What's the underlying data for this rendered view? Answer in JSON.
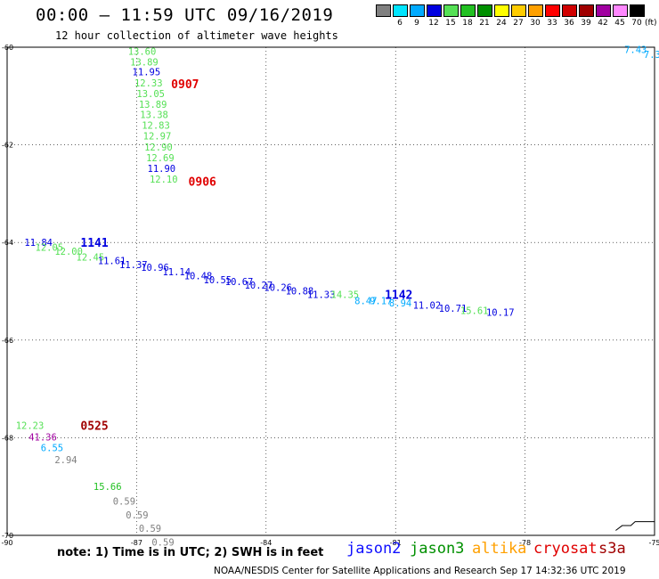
{
  "title": "00:00 – 11:59 UTC 09/16/2019",
  "subtitle": "12 hour collection of altimeter wave heights",
  "legend": {
    "labels": [
      "3",
      "6",
      "9",
      "12",
      "15",
      "18",
      "21",
      "24",
      "27",
      "30",
      "33",
      "36",
      "39",
      "42",
      "45",
      "70"
    ],
    "colors": [
      "#808080",
      "#00e5ff",
      "#00aaff",
      "#0000e0",
      "#55e055",
      "#22c022",
      "#009000",
      "#ffff00",
      "#ffcc00",
      "#ffa000",
      "#ff0000",
      "#d00000",
      "#a00000",
      "#a000a0",
      "#ff88ff",
      "#000000"
    ],
    "unit": "(ft)"
  },
  "note": "note: 1) Time is in UTC; 2) SWH is in feet",
  "satellites": [
    {
      "name": "jason2",
      "color": "#1010ff"
    },
    {
      "name": "jason3",
      "color": "#009000"
    },
    {
      "name": "altika",
      "color": "#ffa000"
    },
    {
      "name": "cryosat",
      "color": "#e00000"
    },
    {
      "name": "s3a",
      "color": "#a00000"
    }
  ],
  "credit": "NOAA/NESDIS Center for Satellite Applications and Research    Sep 17 14:32:36 UTC 2019",
  "chart_data": {
    "type": "scatter",
    "xlabel": "",
    "ylabel": "",
    "xlim": [
      -90,
      -75
    ],
    "ylim": [
      -70,
      -60
    ],
    "x_ticks": [
      -90,
      -87,
      -84,
      -81,
      -78,
      -75
    ],
    "y_ticks": [
      -60,
      -62,
      -64,
      -66,
      -68,
      -70
    ],
    "grid": true,
    "points": [
      {
        "lon": -87.2,
        "lat": -60.08,
        "v": "13.60",
        "c": "#55e055"
      },
      {
        "lon": -87.15,
        "lat": -60.3,
        "v": "13.89",
        "c": "#55e055"
      },
      {
        "lon": -87.1,
        "lat": -60.5,
        "v": "11.95",
        "c": "#0000e0"
      },
      {
        "lon": -87.05,
        "lat": -60.73,
        "v": "12.33",
        "c": "#55e055"
      },
      {
        "lon": -87.0,
        "lat": -60.95,
        "v": "13.05",
        "c": "#55e055"
      },
      {
        "lon": -86.95,
        "lat": -61.17,
        "v": "13.89",
        "c": "#55e055"
      },
      {
        "lon": -86.92,
        "lat": -61.38,
        "v": "13.38",
        "c": "#55e055"
      },
      {
        "lon": -86.88,
        "lat": -61.6,
        "v": "12.83",
        "c": "#55e055"
      },
      {
        "lon": -86.85,
        "lat": -61.82,
        "v": "12.97",
        "c": "#55e055"
      },
      {
        "lon": -86.82,
        "lat": -62.04,
        "v": "12.90",
        "c": "#55e055"
      },
      {
        "lon": -86.78,
        "lat": -62.26,
        "v": "12.69",
        "c": "#55e055"
      },
      {
        "lon": -86.75,
        "lat": -62.48,
        "v": "11.90",
        "c": "#0000e0"
      },
      {
        "lon": -86.7,
        "lat": -62.7,
        "v": "12.10",
        "c": "#55e055"
      },
      {
        "lon": -89.6,
        "lat": -64.0,
        "v": "11.84",
        "c": "#0000e0"
      },
      {
        "lon": -89.35,
        "lat": -64.1,
        "v": "12.05",
        "c": "#55e055"
      },
      {
        "lon": -88.9,
        "lat": -64.18,
        "v": "12.00",
        "c": "#55e055"
      },
      {
        "lon": -88.4,
        "lat": -64.3,
        "v": "12.45",
        "c": "#55e055"
      },
      {
        "lon": -87.9,
        "lat": -64.37,
        "v": "11.61",
        "c": "#0000e0"
      },
      {
        "lon": -87.4,
        "lat": -64.45,
        "v": "11.37",
        "c": "#0000e0"
      },
      {
        "lon": -86.9,
        "lat": -64.51,
        "v": "10.96",
        "c": "#0000e0"
      },
      {
        "lon": -86.4,
        "lat": -64.6,
        "v": "11.14",
        "c": "#0000e0"
      },
      {
        "lon": -85.9,
        "lat": -64.68,
        "v": "10.48",
        "c": "#0000e0"
      },
      {
        "lon": -85.45,
        "lat": -64.76,
        "v": "10.55",
        "c": "#0000e0"
      },
      {
        "lon": -84.95,
        "lat": -64.8,
        "v": "10.67",
        "c": "#0000e0"
      },
      {
        "lon": -84.5,
        "lat": -64.87,
        "v": "10.27",
        "c": "#0000e0"
      },
      {
        "lon": -84.05,
        "lat": -64.92,
        "v": "10.26",
        "c": "#0000e0"
      },
      {
        "lon": -83.55,
        "lat": -64.99,
        "v": "10.88",
        "c": "#0000e0"
      },
      {
        "lon": -83.05,
        "lat": -65.06,
        "v": "11.33",
        "c": "#0000e0"
      },
      {
        "lon": -82.5,
        "lat": -65.06,
        "v": "14.35",
        "c": "#55e055"
      },
      {
        "lon": -81.95,
        "lat": -65.19,
        "v": "8.47",
        "c": "#00aaff"
      },
      {
        "lon": -81.6,
        "lat": -65.19,
        "v": "9.17",
        "c": "#00aaff"
      },
      {
        "lon": -81.15,
        "lat": -65.24,
        "v": "8.94",
        "c": "#00aaff"
      },
      {
        "lon": -80.6,
        "lat": -65.28,
        "v": "11.02",
        "c": "#0000e0"
      },
      {
        "lon": -80.0,
        "lat": -65.35,
        "v": "10.71",
        "c": "#0000e0"
      },
      {
        "lon": -79.5,
        "lat": -65.39,
        "v": "15.61",
        "c": "#55e055"
      },
      {
        "lon": -78.9,
        "lat": -65.43,
        "v": "10.17",
        "c": "#0000e0"
      },
      {
        "lon": -89.8,
        "lat": -67.75,
        "v": "12.23",
        "c": "#55e055"
      },
      {
        "lon": -89.5,
        "lat": -67.98,
        "v": "41.36",
        "c": "#a000a0"
      },
      {
        "lon": -89.22,
        "lat": -68.2,
        "v": "6.55",
        "c": "#00aaff"
      },
      {
        "lon": -88.9,
        "lat": -68.45,
        "v": "2.94",
        "c": "#808080"
      },
      {
        "lon": -88.0,
        "lat": -69.0,
        "v": "15.66",
        "c": "#22c022"
      },
      {
        "lon": -87.55,
        "lat": -69.3,
        "v": "0.59",
        "c": "#808080"
      },
      {
        "lon": -87.25,
        "lat": -69.58,
        "v": "0.59",
        "c": "#808080"
      },
      {
        "lon": -86.95,
        "lat": -69.85,
        "v": "0.59",
        "c": "#808080"
      },
      {
        "lon": -86.65,
        "lat": -70.14,
        "v": "0.59",
        "c": "#808080"
      },
      {
        "lon": -75.7,
        "lat": -60.05,
        "v": "7.43",
        "c": "#00aaff"
      },
      {
        "lon": -75.25,
        "lat": -60.15,
        "v": "7.37",
        "c": "#00aaff"
      },
      {
        "lon": -74.9,
        "lat": -60.25,
        "v": "7.17",
        "c": "#00aaff"
      },
      {
        "lon": -74.6,
        "lat": -60.35,
        "v": "6.",
        "c": "#00aaff"
      }
    ],
    "time_labels": [
      {
        "lon": -86.2,
        "lat": -60.75,
        "t": "0907",
        "c": "#e00000"
      },
      {
        "lon": -85.8,
        "lat": -62.75,
        "t": "0906",
        "c": "#e00000"
      },
      {
        "lon": -88.3,
        "lat": -64.0,
        "t": "1141",
        "c": "#0000e0"
      },
      {
        "lon": -81.25,
        "lat": -65.06,
        "t": "1142",
        "c": "#0000e0"
      },
      {
        "lon": -88.3,
        "lat": -67.75,
        "t": "0525",
        "c": "#a00000"
      },
      {
        "lon": -74.7,
        "lat": -60.08,
        "t": "D94",
        "c": "#0000e0"
      }
    ],
    "coastline": [
      [
        -75.9,
        -69.9
      ],
      [
        -75.75,
        -69.8
      ],
      [
        -75.55,
        -69.8
      ],
      [
        -75.45,
        -69.72
      ],
      [
        -75.25,
        -69.72
      ],
      [
        -75.0,
        -69.72
      ]
    ]
  }
}
